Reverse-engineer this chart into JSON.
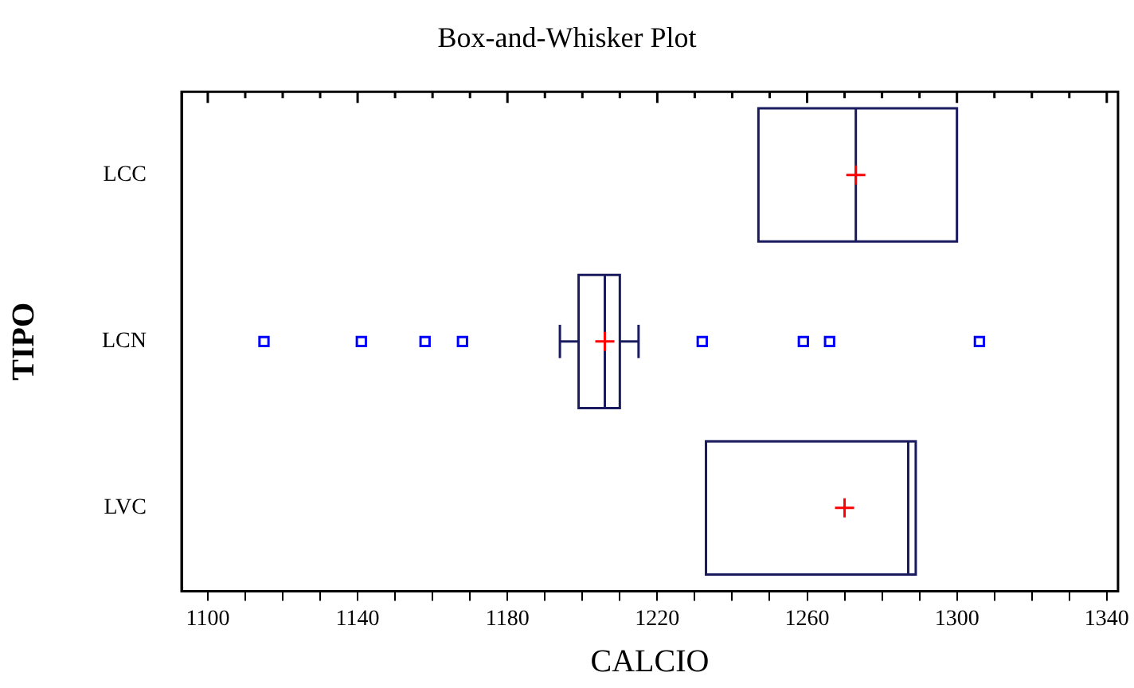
{
  "chart_data": {
    "type": "box",
    "title": "Box-and-Whisker Plot",
    "xlabel": "CALCIO",
    "ylabel": "TIPO",
    "orientation": "horizontal",
    "categories": [
      "LCC",
      "LCN",
      "LVC"
    ],
    "series": [
      {
        "color": "#1a1a5e",
        "boxes": [
          {
            "low": 1247,
            "q1": 1247,
            "median": 1273,
            "q3": 1300,
            "high": 1300,
            "mean": 1273
          },
          {
            "low": 1194,
            "q1": 1199,
            "median": 1206,
            "q3": 1210,
            "high": 1215,
            "mean": 1206,
            "outliers": [
              1115,
              1141,
              1158,
              1168,
              1232,
              1259,
              1266,
              1306
            ]
          },
          {
            "low": 1233,
            "q1": 1233,
            "median": 1287,
            "q3": 1289,
            "high": 1289,
            "mean": 1270
          }
        ]
      }
    ],
    "xlim": [
      1093,
      1343
    ],
    "xticks": [
      {
        "value": 1100,
        "label": "1100"
      },
      {
        "value": 1110,
        "label": null
      },
      {
        "value": 1120,
        "label": null
      },
      {
        "value": 1130,
        "label": null
      },
      {
        "value": 1140,
        "label": "1140"
      },
      {
        "value": 1150,
        "label": null
      },
      {
        "value": 1160,
        "label": null
      },
      {
        "value": 1170,
        "label": null
      },
      {
        "value": 1180,
        "label": "1180"
      },
      {
        "value": 1190,
        "label": null
      },
      {
        "value": 1200,
        "label": null
      },
      {
        "value": 1210,
        "label": null
      },
      {
        "value": 1220,
        "label": "1220"
      },
      {
        "value": 1230,
        "label": null
      },
      {
        "value": 1240,
        "label": null
      },
      {
        "value": 1250,
        "label": null
      },
      {
        "value": 1260,
        "label": "1260"
      },
      {
        "value": 1270,
        "label": null
      },
      {
        "value": 1280,
        "label": null
      },
      {
        "value": 1290,
        "label": null
      },
      {
        "value": 1300,
        "label": "1300"
      },
      {
        "value": 1310,
        "label": null
      },
      {
        "value": 1320,
        "label": null
      },
      {
        "value": 1330,
        "label": null
      },
      {
        "value": 1340,
        "label": "1340"
      }
    ],
    "grid": false,
    "legend": false
  }
}
